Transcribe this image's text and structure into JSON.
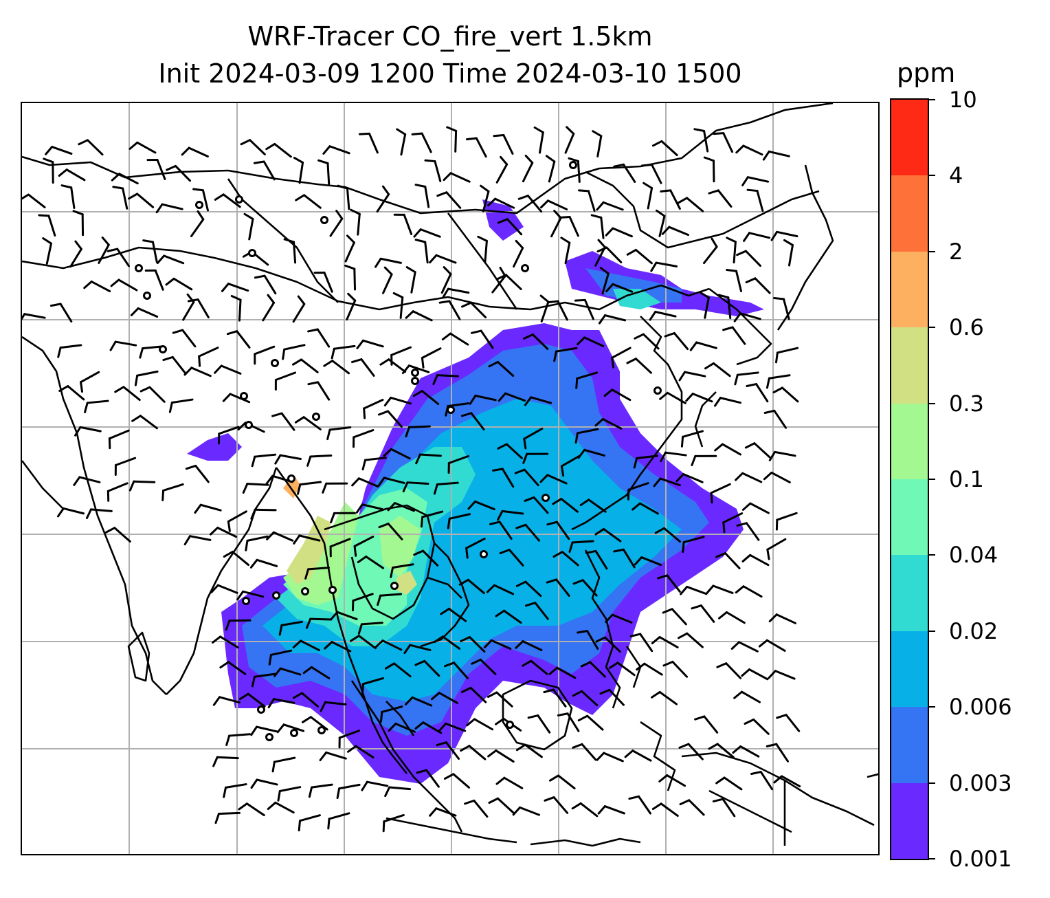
{
  "title": {
    "line1": "WRF-Tracer CO_fire_vert 1.5km",
    "line2": "Init 2024-03-09 1200 Time 2024-03-10 1500"
  },
  "colorbar": {
    "unit": "ppm",
    "levels": [
      "0.001",
      "0.003",
      "0.006",
      "0.02",
      "0.04",
      "0.1",
      "0.3",
      "0.6",
      "2",
      "4",
      "10"
    ],
    "colors": [
      "#6a2aff",
      "#3574f3",
      "#07b1e8",
      "#31dbd2",
      "#6ff8b6",
      "#a3f892",
      "#d2e084",
      "#fdb060",
      "#fe7139",
      "#ff2a16"
    ]
  },
  "map": {
    "variable": "CO_fire_vert",
    "gridlines": true,
    "coastline_color": "#000000",
    "wind_barb_color": "#000000"
  }
}
